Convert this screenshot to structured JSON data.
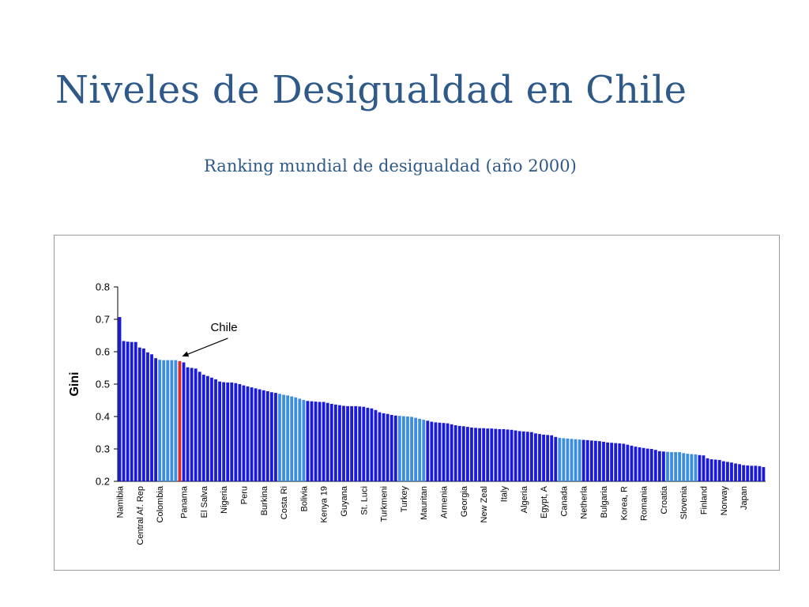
{
  "slide": {
    "title": "Niveles de Desigualdad en Chile",
    "subtitle": "Ranking mundial de desigualdad (año 2000)"
  },
  "colors": {
    "title": "#2e5988",
    "bar_dark": "#1a1adc",
    "bar_light": "#3a8de0",
    "bar_highlight": "#e0281e"
  },
  "chart_data": {
    "type": "bar",
    "title": "",
    "xlabel": "",
    "ylabel": "Gini",
    "ylim": [
      0.2,
      0.8
    ],
    "yticks": [
      0.2,
      0.3,
      0.4,
      0.5,
      0.6,
      0.7,
      0.8
    ],
    "ytick_labels": [
      "0.2",
      "0.3",
      "0.4",
      "0.5",
      "0.6",
      "0.7",
      "0.8"
    ],
    "grid": false,
    "legend": "none",
    "annotation": {
      "text": "Chile",
      "bar_index": 15
    },
    "category_labels": [
      {
        "bar_index": 0,
        "text": "Namibia"
      },
      {
        "bar_index": 5,
        "text": "Central Af. Rep"
      },
      {
        "bar_index": 10,
        "text": "Colombia"
      },
      {
        "bar_index": 16,
        "text": "Panama"
      },
      {
        "bar_index": 21,
        "text": "El Salva"
      },
      {
        "bar_index": 26,
        "text": "Nigeria"
      },
      {
        "bar_index": 31,
        "text": "Peru"
      },
      {
        "bar_index": 36,
        "text": "Burkina"
      },
      {
        "bar_index": 41,
        "text": "Costa Ri"
      },
      {
        "bar_index": 46,
        "text": "Bolivia"
      },
      {
        "bar_index": 51,
        "text": "Kenya 19"
      },
      {
        "bar_index": 56,
        "text": "Guyana"
      },
      {
        "bar_index": 61,
        "text": "St. Luci"
      },
      {
        "bar_index": 66,
        "text": "Turkmeni"
      },
      {
        "bar_index": 71,
        "text": "Turkey"
      },
      {
        "bar_index": 76,
        "text": "Mauritan"
      },
      {
        "bar_index": 81,
        "text": "Armenia"
      },
      {
        "bar_index": 86,
        "text": "Georgia"
      },
      {
        "bar_index": 91,
        "text": "New Zeal"
      },
      {
        "bar_index": 96,
        "text": "Italy"
      },
      {
        "bar_index": 101,
        "text": "Algeria"
      },
      {
        "bar_index": 106,
        "text": "Egypt, A"
      },
      {
        "bar_index": 111,
        "text": "Canada"
      },
      {
        "bar_index": 116,
        "text": "Netherla"
      },
      {
        "bar_index": 121,
        "text": "Bulgaria"
      },
      {
        "bar_index": 126,
        "text": "Korea, R"
      },
      {
        "bar_index": 131,
        "text": "Romania"
      },
      {
        "bar_index": 136,
        "text": "Croatia"
      },
      {
        "bar_index": 141,
        "text": "Slovenia"
      },
      {
        "bar_index": 146,
        "text": "Finland"
      },
      {
        "bar_index": 151,
        "text": "Norway"
      },
      {
        "bar_index": 156,
        "text": "Japan"
      }
    ],
    "values": [
      0.707,
      0.633,
      0.631,
      0.63,
      0.63,
      0.613,
      0.61,
      0.598,
      0.592,
      0.58,
      0.575,
      0.574,
      0.574,
      0.574,
      0.574,
      0.571,
      0.567,
      0.552,
      0.55,
      0.548,
      0.538,
      0.529,
      0.525,
      0.52,
      0.515,
      0.508,
      0.506,
      0.505,
      0.505,
      0.503,
      0.5,
      0.496,
      0.493,
      0.49,
      0.487,
      0.484,
      0.481,
      0.478,
      0.475,
      0.473,
      0.47,
      0.467,
      0.465,
      0.462,
      0.459,
      0.455,
      0.451,
      0.448,
      0.447,
      0.446,
      0.445,
      0.445,
      0.442,
      0.439,
      0.437,
      0.435,
      0.433,
      0.432,
      0.432,
      0.432,
      0.431,
      0.43,
      0.427,
      0.425,
      0.42,
      0.413,
      0.41,
      0.408,
      0.405,
      0.403,
      0.402,
      0.401,
      0.4,
      0.399,
      0.396,
      0.393,
      0.39,
      0.387,
      0.384,
      0.382,
      0.381,
      0.38,
      0.379,
      0.376,
      0.373,
      0.371,
      0.37,
      0.368,
      0.366,
      0.365,
      0.364,
      0.364,
      0.363,
      0.363,
      0.362,
      0.361,
      0.361,
      0.36,
      0.359,
      0.357,
      0.355,
      0.354,
      0.353,
      0.352,
      0.348,
      0.346,
      0.344,
      0.343,
      0.342,
      0.337,
      0.334,
      0.333,
      0.332,
      0.331,
      0.33,
      0.329,
      0.328,
      0.327,
      0.326,
      0.325,
      0.324,
      0.322,
      0.32,
      0.319,
      0.318,
      0.317,
      0.316,
      0.313,
      0.31,
      0.307,
      0.305,
      0.303,
      0.301,
      0.3,
      0.297,
      0.293,
      0.292,
      0.291,
      0.29,
      0.29,
      0.29,
      0.287,
      0.285,
      0.284,
      0.283,
      0.281,
      0.28,
      0.271,
      0.268,
      0.267,
      0.266,
      0.262,
      0.26,
      0.258,
      0.255,
      0.253,
      0.25,
      0.249,
      0.248,
      0.248,
      0.247,
      0.244
    ],
    "colors": [
      "dark",
      "dark",
      "dark",
      "dark",
      "dark",
      "dark",
      "dark",
      "dark",
      "dark",
      "dark",
      "light",
      "light",
      "light",
      "light",
      "light",
      "highlight",
      "dark",
      "dark",
      "dark",
      "dark",
      "dark",
      "dark",
      "dark",
      "dark",
      "dark",
      "dark",
      "dark",
      "dark",
      "dark",
      "dark",
      "dark",
      "dark",
      "dark",
      "dark",
      "dark",
      "dark",
      "dark",
      "dark",
      "dark",
      "dark",
      "light",
      "light",
      "light",
      "light",
      "light",
      "light",
      "light",
      "dark",
      "dark",
      "dark",
      "dark",
      "dark",
      "dark",
      "dark",
      "dark",
      "dark",
      "dark",
      "dark",
      "dark",
      "dark",
      "dark",
      "dark",
      "dark",
      "dark",
      "dark",
      "dark",
      "dark",
      "dark",
      "dark",
      "dark",
      "light",
      "light",
      "light",
      "light",
      "light",
      "light",
      "light",
      "dark",
      "dark",
      "dark",
      "dark",
      "dark",
      "dark",
      "dark",
      "dark",
      "dark",
      "dark",
      "dark",
      "dark",
      "dark",
      "dark",
      "dark",
      "dark",
      "dark",
      "dark",
      "dark",
      "dark",
      "dark",
      "dark",
      "dark",
      "dark",
      "dark",
      "dark",
      "dark",
      "dark",
      "dark",
      "dark",
      "dark",
      "dark",
      "dark",
      "light",
      "light",
      "light",
      "light",
      "light",
      "light",
      "dark",
      "dark",
      "dark",
      "dark",
      "dark",
      "dark",
      "dark",
      "dark",
      "dark",
      "dark",
      "dark",
      "dark",
      "dark",
      "dark",
      "dark",
      "dark",
      "dark",
      "dark",
      "dark",
      "dark",
      "dark",
      "light",
      "light",
      "light",
      "light",
      "light",
      "light",
      "light",
      "light",
      "dark",
      "dark",
      "dark",
      "dark",
      "dark",
      "dark",
      "dark",
      "dark",
      "dark",
      "dark",
      "dark",
      "dark",
      "dark",
      "dark",
      "dark",
      "dark",
      "dark"
    ]
  }
}
